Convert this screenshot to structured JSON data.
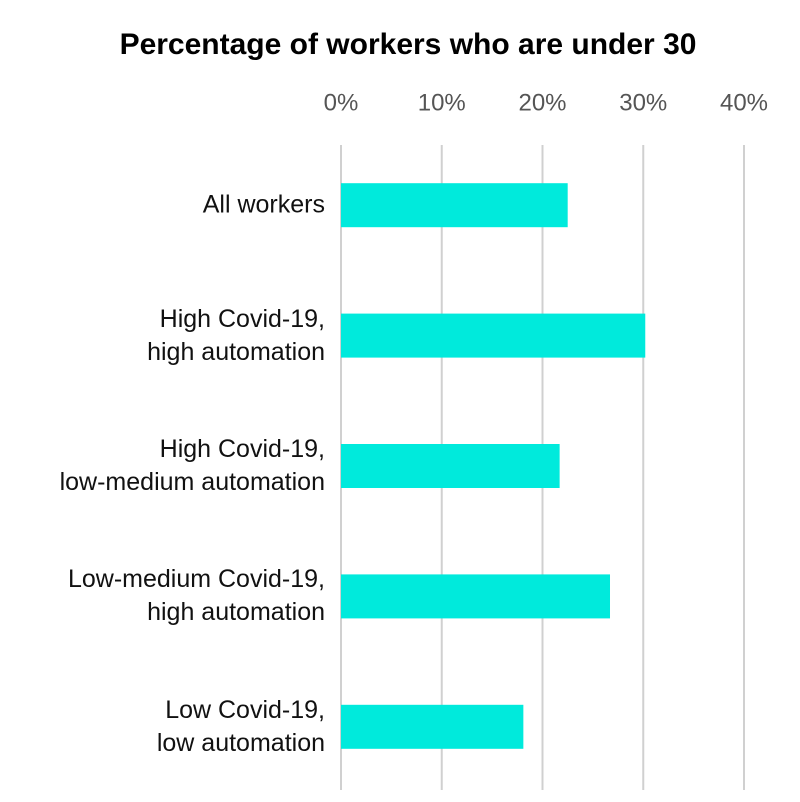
{
  "chart_data": {
    "type": "barh",
    "title": "Percentage of workers who are under 30",
    "categories": [
      "All workers",
      "High Covid-19,\nhigh automation",
      "High Covid-19,\nlow-medium automation",
      "Low-medium Covid-19,\nhigh automation",
      "Low Covid-19,\nlow automation"
    ],
    "values": [
      22.5,
      30.2,
      21.7,
      26.7,
      18.1
    ],
    "color": "#00eadc",
    "xlim": [
      0,
      40
    ],
    "xticks": [
      {
        "value": 0,
        "label": "0%"
      },
      {
        "value": 10,
        "label": "10%"
      },
      {
        "value": 20,
        "label": "20%"
      },
      {
        "value": 30,
        "label": "30%"
      },
      {
        "value": 40,
        "label": "40%"
      }
    ],
    "grid": true
  }
}
